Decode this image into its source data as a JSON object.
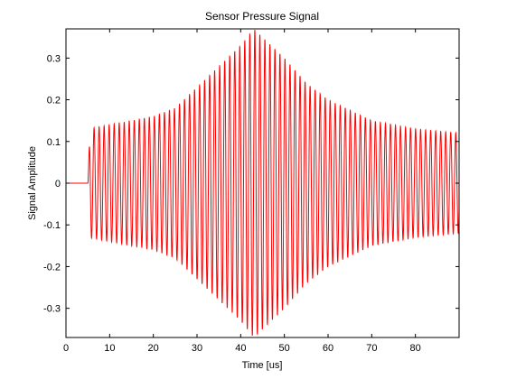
{
  "chart_data": {
    "type": "line",
    "title": "Sensor Pressure Signal",
    "xlabel": "Time [us]",
    "ylabel": "Signal Amplitude",
    "xlim": [
      0,
      90
    ],
    "ylim": [
      -0.37,
      0.37
    ],
    "x_ticks": [
      0,
      10,
      20,
      30,
      40,
      50,
      60,
      70,
      80
    ],
    "x_tick_labels": [
      "0",
      "10",
      "20",
      "30",
      "40",
      "50",
      "60",
      "70",
      "80"
    ],
    "y_ticks": [
      -0.3,
      -0.2,
      -0.1,
      0,
      0.1,
      0.2,
      0.3
    ],
    "y_tick_labels": [
      "-0.3",
      "-0.2",
      "-0.1",
      "0",
      "0.1",
      "0.2",
      "0.3"
    ],
    "grid": false,
    "series": [
      {
        "color": "#ff0000",
        "signal_start": 5,
        "carrier_period": 1.15,
        "envelope": {
          "t": [
            5,
            10,
            20,
            25,
            30,
            35,
            40,
            43,
            45,
            50,
            55,
            60,
            70,
            80,
            90
          ],
          "amp": [
            0.13,
            0.14,
            0.16,
            0.18,
            0.23,
            0.28,
            0.33,
            0.37,
            0.35,
            0.3,
            0.24,
            0.2,
            0.15,
            0.13,
            0.12
          ]
        }
      }
    ]
  }
}
